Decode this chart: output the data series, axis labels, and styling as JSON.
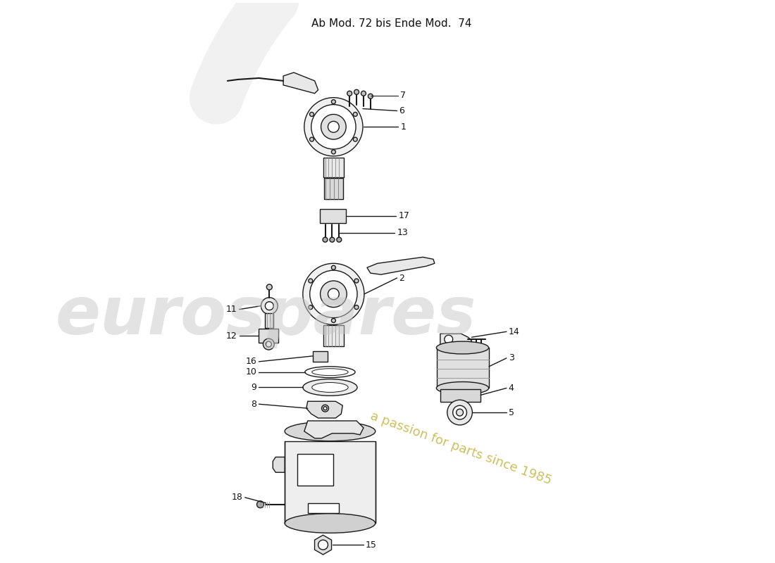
{
  "title": "Ab Mod. 72 bis Ende Mod.  74",
  "title_fontsize": 11,
  "bg_color": "#ffffff",
  "line_color": "#1a1a1a",
  "label_color": "#111111",
  "watermark_text1": "eurospares",
  "watermark_text2": "a passion for parts since 1985",
  "watermark_color1": "#c8c8c8",
  "watermark_color2": "#c8b84a",
  "fig_width": 11.0,
  "fig_height": 8.0,
  "dpi": 100
}
